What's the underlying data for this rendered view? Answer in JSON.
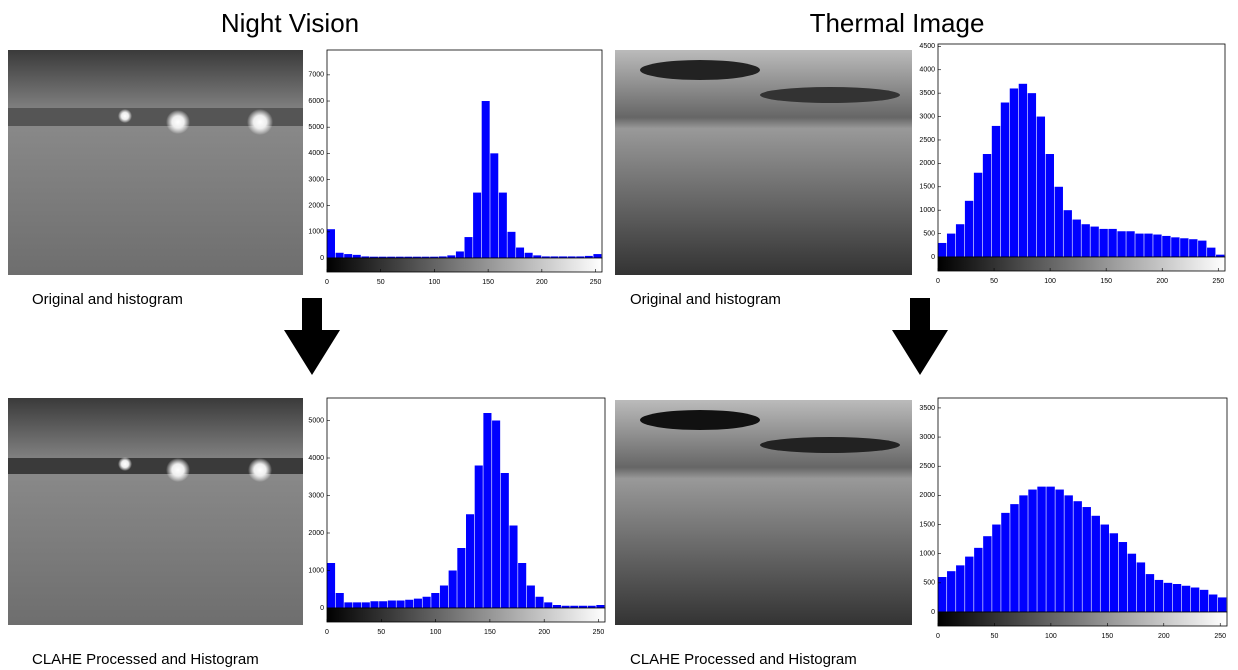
{
  "headings": [
    "Night Vision",
    "Thermal Image"
  ],
  "chart_data": [
    {
      "type": "histogram",
      "caption": "Original and histogram",
      "color": "#0000ff",
      "bins": [
        0,
        8,
        16,
        24,
        32,
        40,
        48,
        56,
        64,
        72,
        80,
        88,
        96,
        104,
        112,
        120,
        128,
        136,
        144,
        152,
        160,
        168,
        176,
        184,
        192,
        200,
        208,
        216,
        224,
        232,
        240,
        248,
        256
      ],
      "values": [
        1100,
        200,
        150,
        120,
        60,
        50,
        50,
        50,
        50,
        50,
        50,
        50,
        50,
        60,
        100,
        250,
        800,
        2500,
        6000,
        4000,
        2500,
        1000,
        400,
        200,
        100,
        60,
        60,
        60,
        60,
        60,
        80,
        150
      ],
      "xlim": [
        0,
        256
      ],
      "xticks": [
        0,
        50,
        100,
        150,
        200,
        250
      ],
      "ylim": [
        0,
        7950
      ],
      "yticks": [
        0,
        1000,
        2000,
        3000,
        4000,
        5000,
        6000,
        7000
      ]
    },
    {
      "type": "histogram",
      "caption": "CLAHE Processed and Histogram",
      "color": "#0000ff",
      "bins": [
        0,
        8,
        16,
        24,
        32,
        40,
        48,
        56,
        64,
        72,
        80,
        88,
        96,
        104,
        112,
        120,
        128,
        136,
        144,
        152,
        160,
        168,
        176,
        184,
        192,
        200,
        208,
        216,
        224,
        232,
        240,
        248,
        256
      ],
      "values": [
        1200,
        400,
        150,
        150,
        150,
        180,
        180,
        200,
        200,
        220,
        250,
        300,
        400,
        600,
        1000,
        1600,
        2500,
        3800,
        5200,
        5000,
        3600,
        2200,
        1200,
        600,
        300,
        150,
        80,
        60,
        60,
        60,
        60,
        80
      ],
      "xlim": [
        0,
        256
      ],
      "xticks": [
        0,
        50,
        100,
        150,
        200,
        250
      ],
      "ylim": [
        0,
        5600
      ],
      "yticks": [
        0,
        1000,
        2000,
        3000,
        4000,
        5000
      ]
    },
    {
      "type": "histogram",
      "caption": "Original and histogram",
      "color": "#0000ff",
      "bins": [
        0,
        8,
        16,
        24,
        32,
        40,
        48,
        56,
        64,
        72,
        80,
        88,
        96,
        104,
        112,
        120,
        128,
        136,
        144,
        152,
        160,
        168,
        176,
        184,
        192,
        200,
        208,
        216,
        224,
        232,
        240,
        248,
        256
      ],
      "values": [
        300,
        500,
        700,
        1200,
        1800,
        2200,
        2800,
        3300,
        3600,
        3700,
        3500,
        3000,
        2200,
        1500,
        1000,
        800,
        700,
        650,
        600,
        600,
        550,
        550,
        500,
        500,
        480,
        450,
        420,
        400,
        380,
        350,
        200,
        50
      ],
      "xlim": [
        0,
        256
      ],
      "xticks": [
        0,
        50,
        100,
        150,
        200,
        250
      ],
      "ylim": [
        0,
        4550
      ],
      "yticks": [
        0,
        500,
        1000,
        1500,
        2000,
        2500,
        3000,
        3500,
        4000,
        4500
      ]
    },
    {
      "type": "histogram",
      "caption": "CLAHE Processed and Histogram",
      "color": "#0000ff",
      "bins": [
        0,
        8,
        16,
        24,
        32,
        40,
        48,
        56,
        64,
        72,
        80,
        88,
        96,
        104,
        112,
        120,
        128,
        136,
        144,
        152,
        160,
        168,
        176,
        184,
        192,
        200,
        208,
        216,
        224,
        232,
        240,
        248,
        256
      ],
      "values": [
        600,
        700,
        800,
        950,
        1100,
        1300,
        1500,
        1700,
        1850,
        2000,
        2100,
        2150,
        2150,
        2100,
        2000,
        1900,
        1800,
        1650,
        1500,
        1350,
        1200,
        1000,
        850,
        650,
        550,
        500,
        480,
        450,
        420,
        380,
        300,
        250
      ],
      "xlim": [
        0,
        256
      ],
      "xticks": [
        0,
        50,
        100,
        150,
        200,
        250
      ],
      "ylim": [
        0,
        3670
      ],
      "yticks": [
        0,
        500,
        1000,
        1500,
        2000,
        2500,
        3000,
        3500
      ]
    }
  ]
}
